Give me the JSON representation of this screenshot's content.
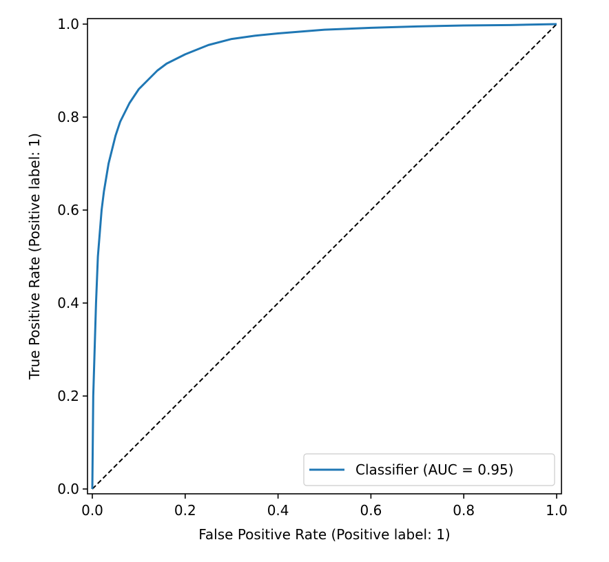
{
  "chart_data": {
    "type": "line",
    "title": "",
    "xlabel": "False Positive Rate (Positive label: 1)",
    "ylabel": "True Positive Rate (Positive label: 1)",
    "xlim": [
      0,
      1
    ],
    "ylim": [
      0,
      1
    ],
    "xticks": [
      "0.0",
      "0.2",
      "0.4",
      "0.6",
      "0.8",
      "1.0"
    ],
    "yticks": [
      "0.0",
      "0.2",
      "0.4",
      "0.6",
      "0.8",
      "1.0"
    ],
    "grid": false,
    "legend_position": "lower right",
    "series": [
      {
        "name": "Classifier (AUC = 0.95)",
        "color": "#1f77b4",
        "style": "solid",
        "x": [
          0,
          0.002,
          0.005,
          0.008,
          0.012,
          0.016,
          0.02,
          0.025,
          0.03,
          0.035,
          0.04,
          0.05,
          0.06,
          0.07,
          0.08,
          0.09,
          0.1,
          0.12,
          0.14,
          0.16,
          0.18,
          0.2,
          0.25,
          0.3,
          0.35,
          0.4,
          0.5,
          0.6,
          0.7,
          0.8,
          0.9,
          1.0
        ],
        "y": [
          0,
          0.2,
          0.3,
          0.4,
          0.5,
          0.55,
          0.6,
          0.64,
          0.67,
          0.7,
          0.72,
          0.76,
          0.79,
          0.81,
          0.83,
          0.845,
          0.86,
          0.88,
          0.9,
          0.915,
          0.925,
          0.935,
          0.955,
          0.968,
          0.975,
          0.98,
          0.988,
          0.992,
          0.995,
          0.997,
          0.998,
          1.0
        ]
      },
      {
        "name": "",
        "color": "#000000",
        "style": "dashed",
        "x": [
          0,
          1
        ],
        "y": [
          0,
          1
        ]
      }
    ]
  }
}
